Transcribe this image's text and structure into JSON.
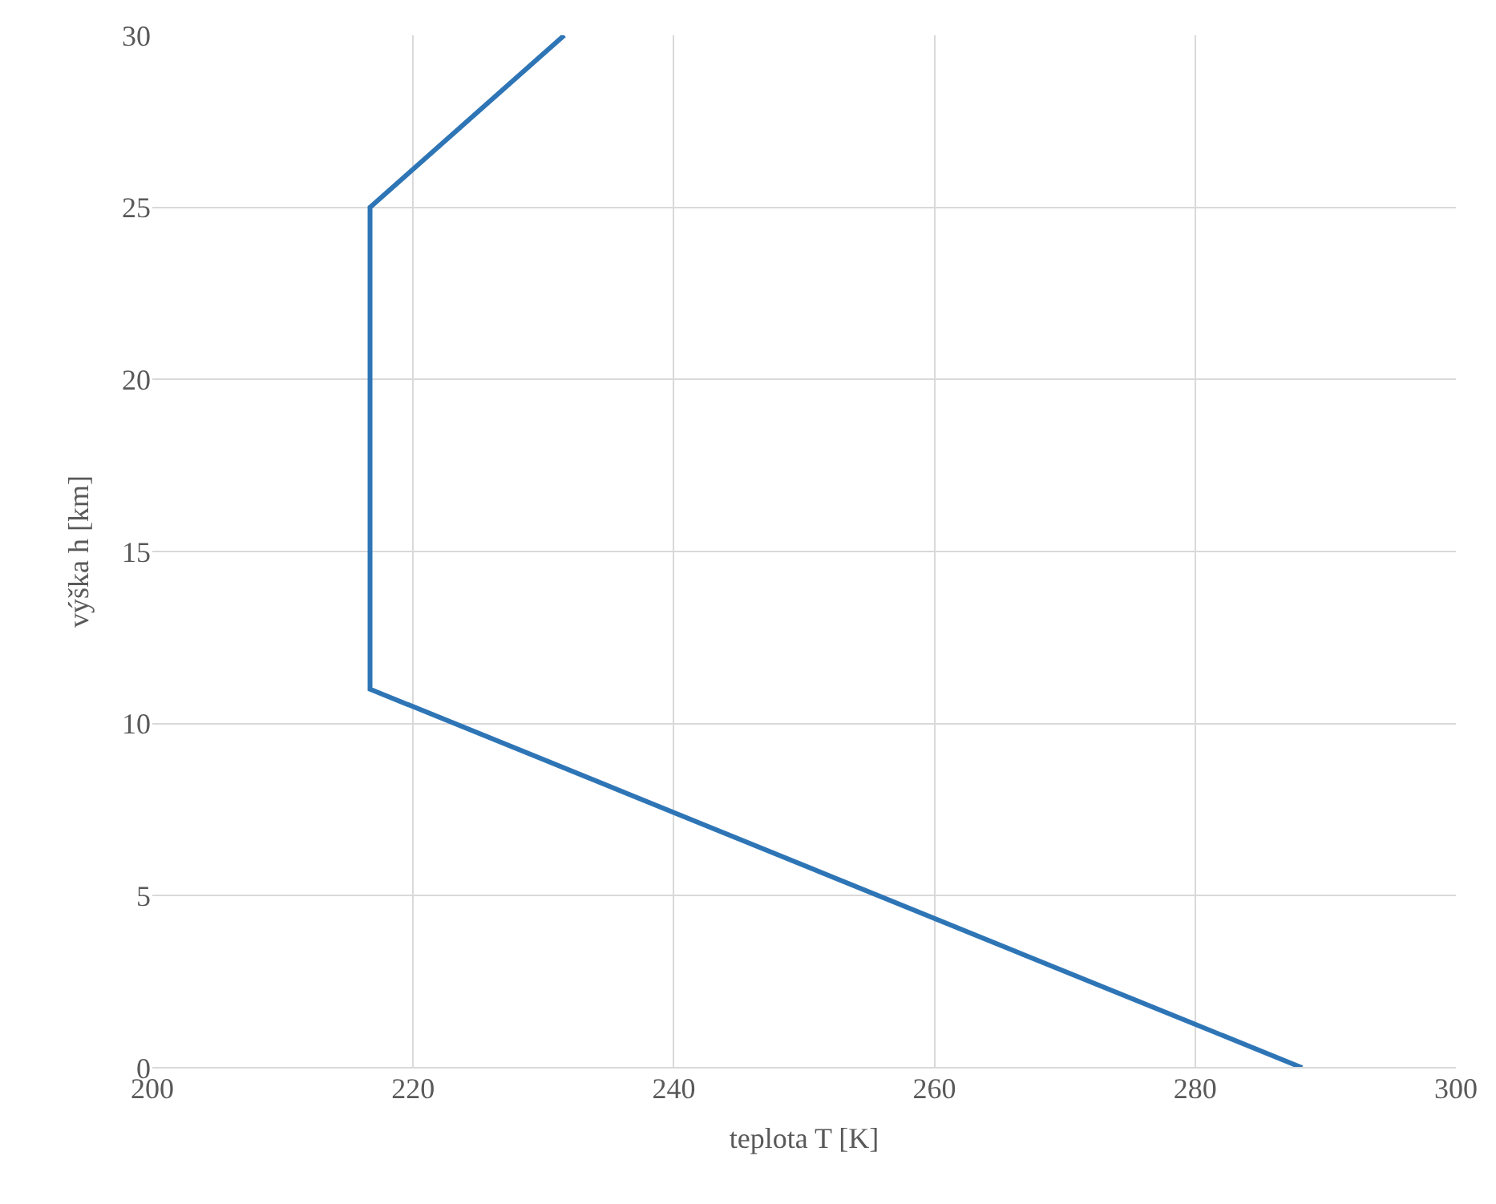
{
  "chart_data": {
    "type": "line",
    "xlabel": "teplota T [K]",
    "ylabel": "výška h [km]",
    "x": [
      288.2,
      216.7,
      216.7,
      231.6
    ],
    "series": [
      {
        "color": "#2e75b6",
        "values": [
          0,
          11,
          25,
          30
        ]
      }
    ],
    "xlim": [
      200,
      300
    ],
    "xticks": [
      200,
      220,
      240,
      260,
      280,
      300
    ],
    "ylim": [
      0,
      30
    ],
    "yticks": [
      0,
      5,
      10,
      15,
      20,
      25,
      30
    ],
    "grid": true,
    "legend": false,
    "marker": "none",
    "line_style": "solid"
  }
}
